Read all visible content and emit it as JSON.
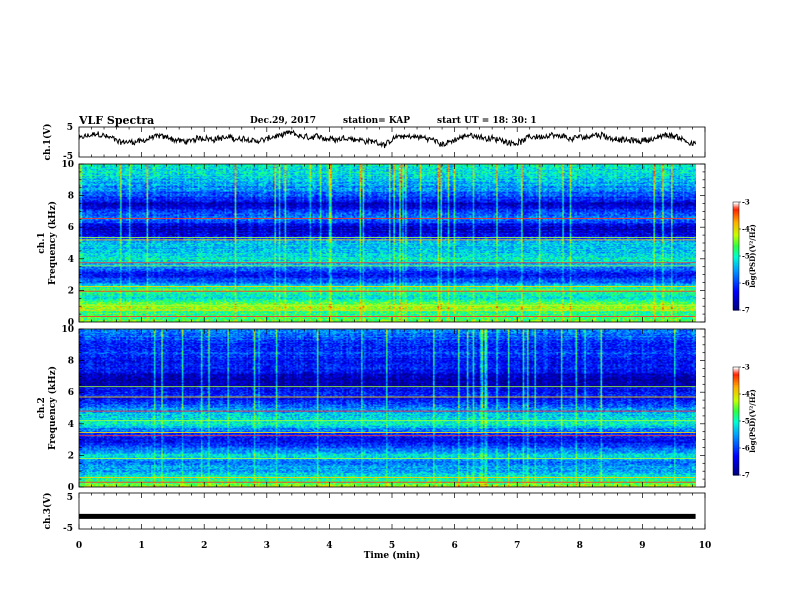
{
  "header": {
    "title": "VLF Spectra",
    "date": "Dec.29, 2017",
    "station": "station= KAP",
    "start": "start  UT =   18: 30: 1"
  },
  "colors": {
    "colormap": [
      "#00007a",
      "#0000ff",
      "#00a0ff",
      "#00ffd0",
      "#30ff40",
      "#c8ff00",
      "#ffb000",
      "#ff2000",
      "#ffffff"
    ],
    "trace": "#000000"
  },
  "chart_data": [
    {
      "type": "line",
      "panel": "ch1-waveform",
      "ylabel": "ch.1(V)",
      "xlim": [
        0,
        10
      ],
      "ylim": [
        -5,
        5
      ],
      "yticks": [
        "5",
        "-5"
      ],
      "x_end": 9.85,
      "baseline": 1.0,
      "noise_amplitude": 1.8
    },
    {
      "type": "heatmap",
      "panel": "ch1-spectrogram",
      "ylabel": "ch.1\nFrequency  (kHz)",
      "xlim": [
        0,
        10
      ],
      "ylim": [
        0,
        10
      ],
      "yticks": [
        "0",
        "2",
        "4",
        "6",
        "8",
        "10"
      ],
      "x_end": 9.85,
      "profile": [
        {
          "f": 0.0,
          "level": -4.4
        },
        {
          "f": 0.5,
          "level": -4.8
        },
        {
          "f": 1.0,
          "level": -4.2
        },
        {
          "f": 1.5,
          "level": -5.2
        },
        {
          "f": 2.0,
          "level": -4.6
        },
        {
          "f": 2.5,
          "level": -5.8
        },
        {
          "f": 3.0,
          "level": -6.3
        },
        {
          "f": 3.5,
          "level": -5.6
        },
        {
          "f": 4.0,
          "level": -5.0
        },
        {
          "f": 4.5,
          "level": -5.4
        },
        {
          "f": 5.0,
          "level": -5.3
        },
        {
          "f": 5.5,
          "level": -6.4
        },
        {
          "f": 6.0,
          "level": -6.7
        },
        {
          "f": 6.5,
          "level": -5.6
        },
        {
          "f": 7.0,
          "level": -6.1
        },
        {
          "f": 7.5,
          "level": -6.6
        },
        {
          "f": 8.0,
          "level": -5.9
        },
        {
          "f": 8.5,
          "level": -5.6
        },
        {
          "f": 9.0,
          "level": -5.3
        },
        {
          "f": 9.5,
          "level": -5.1
        },
        {
          "f": 10.0,
          "level": -5.0
        }
      ],
      "lines_khz": [
        0.35,
        0.75,
        1.05,
        1.95,
        2.25,
        3.55,
        3.75,
        5.2,
        5.35,
        6.55
      ]
    },
    {
      "type": "heatmap",
      "panel": "ch2-spectrogram",
      "ylabel": "ch.2\nFrequency  (kHz)",
      "xlim": [
        0,
        10
      ],
      "ylim": [
        0,
        10
      ],
      "yticks": [
        "0",
        "2",
        "4",
        "6",
        "8",
        "10"
      ],
      "x_end": 9.85,
      "profile": [
        {
          "f": 0.0,
          "level": -4.3
        },
        {
          "f": 0.5,
          "level": -5.0
        },
        {
          "f": 1.0,
          "level": -5.4
        },
        {
          "f": 1.5,
          "level": -5.7
        },
        {
          "f": 2.0,
          "level": -5.2
        },
        {
          "f": 2.5,
          "level": -5.9
        },
        {
          "f": 3.0,
          "level": -6.4
        },
        {
          "f": 3.5,
          "level": -5.8
        },
        {
          "f": 4.0,
          "level": -5.0
        },
        {
          "f": 4.5,
          "level": -5.2
        },
        {
          "f": 5.0,
          "level": -5.6
        },
        {
          "f": 5.5,
          "level": -6.3
        },
        {
          "f": 6.0,
          "level": -6.1
        },
        {
          "f": 6.5,
          "level": -6.8
        },
        {
          "f": 7.0,
          "level": -6.6
        },
        {
          "f": 7.5,
          "level": -6.2
        },
        {
          "f": 8.0,
          "level": -6.3
        },
        {
          "f": 8.5,
          "level": -6.0
        },
        {
          "f": 9.0,
          "level": -6.2
        },
        {
          "f": 9.5,
          "level": -5.8
        },
        {
          "f": 10.0,
          "level": -5.6
        }
      ],
      "lines_khz": [
        0.3,
        0.6,
        1.8,
        3.25,
        3.45,
        4.2,
        4.8,
        5.7,
        6.35
      ]
    },
    {
      "type": "line",
      "panel": "ch3-waveform",
      "ylabel": "ch.3(V)",
      "xlim": [
        0,
        10
      ],
      "ylim": [
        -5,
        5
      ],
      "yticks": [
        "5",
        "-5"
      ],
      "x_end": 9.85,
      "baseline": -1.5,
      "noise_amplitude": 0.1
    }
  ],
  "xaxis": {
    "label": "Time  (min)",
    "ticks": [
      "0",
      "1",
      "2",
      "3",
      "4",
      "5",
      "6",
      "7",
      "8",
      "9",
      "10"
    ]
  },
  "colorbar": {
    "label": "log(PSD)(V²/Hz)",
    "range": [
      -7,
      -3
    ],
    "ticks": [
      "-3",
      "-4",
      "-5",
      "-6",
      "-7"
    ]
  }
}
